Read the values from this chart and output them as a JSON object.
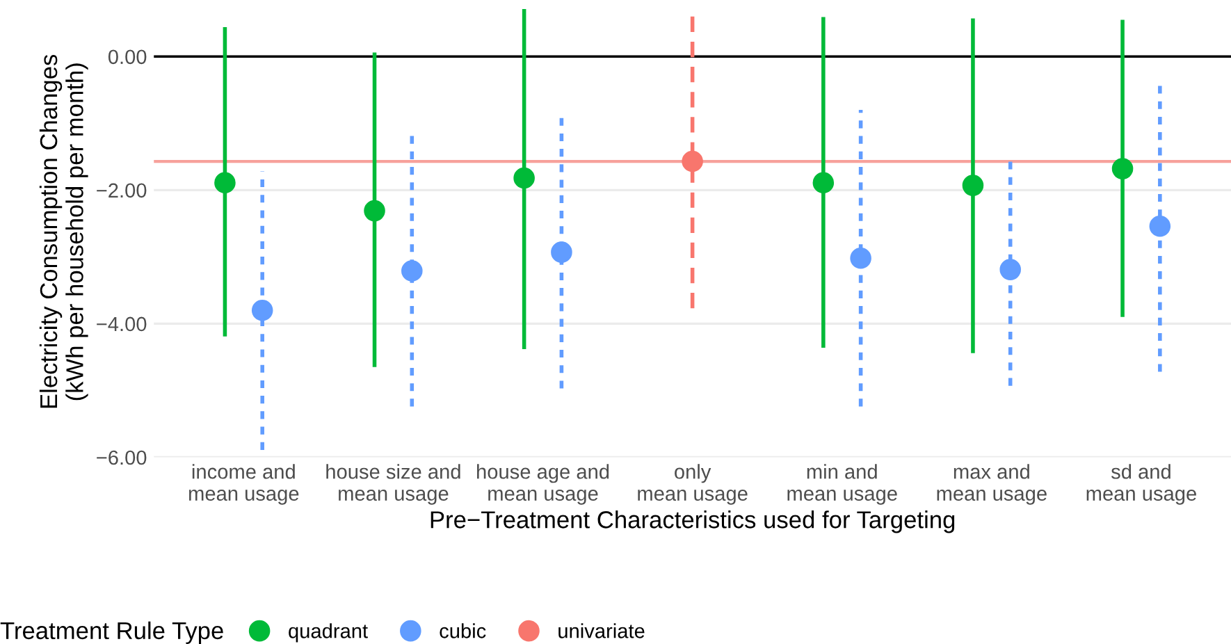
{
  "chart_data": {
    "type": "scatter",
    "xlabel": "Pre−Treatment Characteristics used for Targeting",
    "ylabel": "Electricity Consumption Changes\n(kWh per household per month)",
    "legend_title": "Treatment Rule Type",
    "categories": [
      "income and\nmean usage",
      "house size and\nmean usage",
      "house age and\nmean usage",
      "only\nmean usage",
      "min and\nmean usage",
      "max and\nmean usage",
      "sd and\nmean usage"
    ],
    "series": [
      {
        "name": "quadrant",
        "color": "#00ba38",
        "line_style": "solid",
        "values": [
          -1.89,
          -2.31,
          -1.82,
          null,
          -1.89,
          -1.93,
          -1.68
        ],
        "errors": [
          [
            -4.19,
            0.44
          ],
          [
            -4.65,
            0.06
          ],
          [
            -4.38,
            0.71
          ],
          null,
          [
            -4.36,
            0.59
          ],
          [
            -4.44,
            0.57
          ],
          [
            -3.9,
            0.55
          ]
        ]
      },
      {
        "name": "cubic",
        "color": "#619cff",
        "line_style": "dotted",
        "values": [
          -3.8,
          -3.21,
          -2.93,
          null,
          -3.02,
          -3.19,
          -2.54
        ],
        "errors": [
          [
            -5.89,
            -1.72
          ],
          [
            -5.24,
            -1.15
          ],
          [
            -4.97,
            -0.88
          ],
          null,
          [
            -5.24,
            -0.8
          ],
          [
            -4.93,
            -1.49
          ],
          [
            -4.72,
            -0.42
          ]
        ]
      },
      {
        "name": "univariate",
        "color": "#f8766d",
        "line_style": "dashed",
        "values": [
          null,
          null,
          null,
          -1.57,
          null,
          null,
          null
        ],
        "errors": [
          null,
          null,
          null,
          [
            -3.77,
            0.63
          ],
          null,
          null,
          null
        ]
      }
    ],
    "ylim": [
      -6.0,
      0.75
    ],
    "yticks": [
      {
        "value": -6,
        "label": "−6.00"
      },
      {
        "value": -4,
        "label": "−4.00"
      },
      {
        "value": -2,
        "label": "−2.00"
      },
      {
        "value": 0,
        "label": "0.00"
      }
    ],
    "ref_lines": [
      {
        "axis": "y",
        "value": 0,
        "color": "#000000"
      },
      {
        "axis": "y",
        "value": -1.57,
        "color": "#f7a19b"
      }
    ],
    "grid": "y",
    "legend": "bottom",
    "marker": "circle"
  }
}
